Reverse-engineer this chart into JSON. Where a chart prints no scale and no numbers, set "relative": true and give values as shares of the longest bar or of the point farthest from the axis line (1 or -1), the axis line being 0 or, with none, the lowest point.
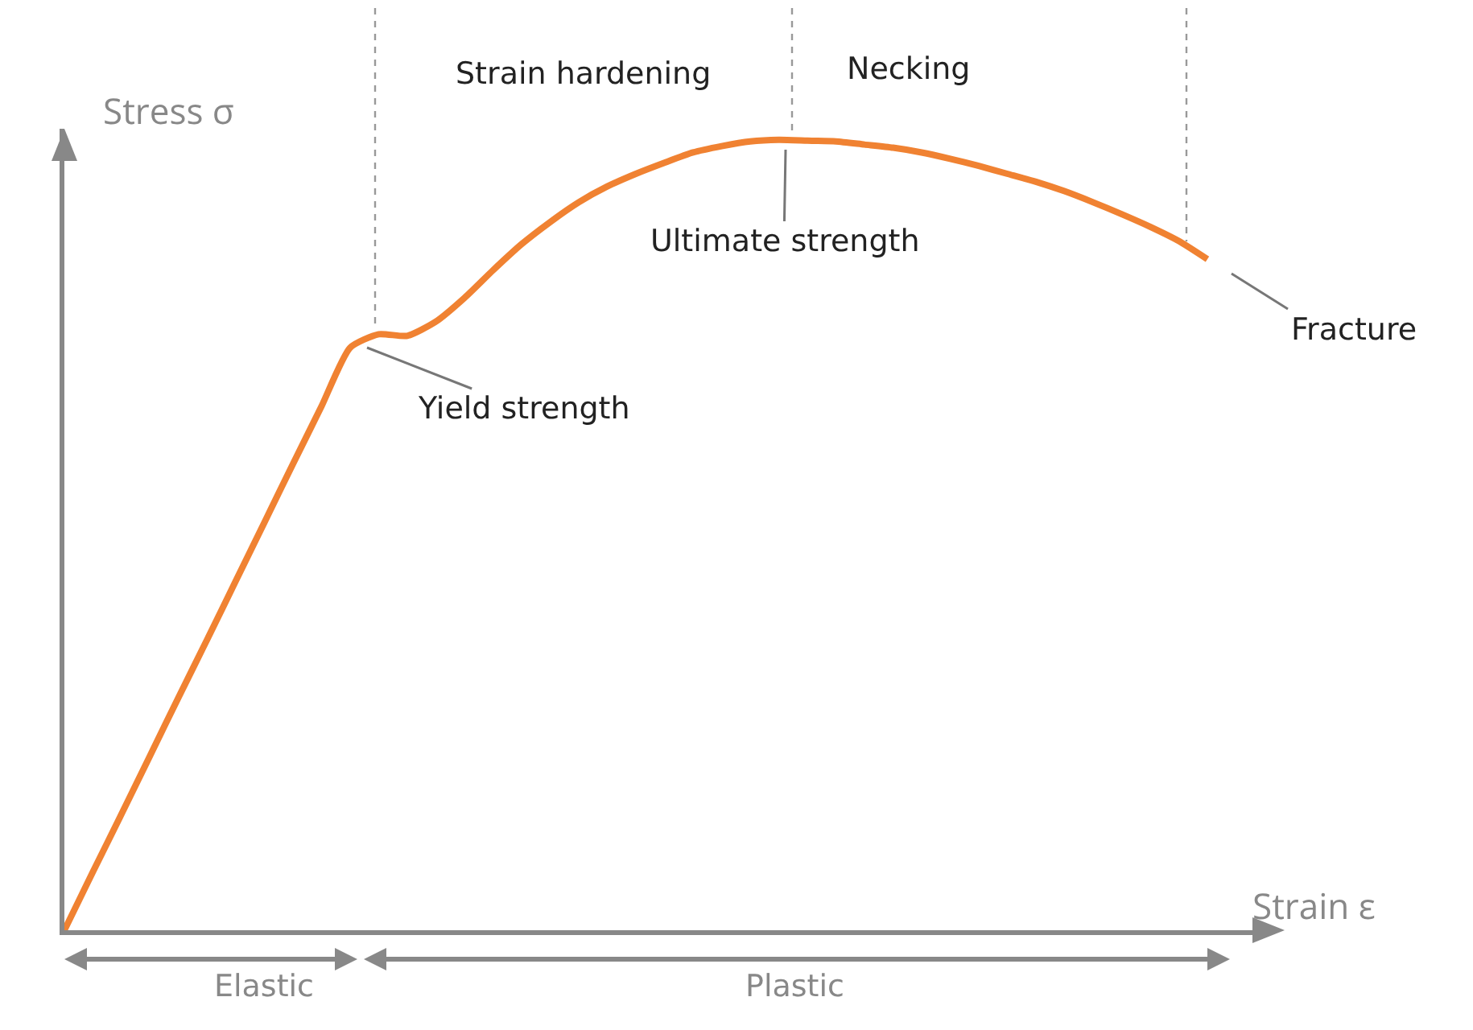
{
  "chart_data": {
    "type": "line",
    "relative": true,
    "xlabel": "Strain ε",
    "ylabel": "Stress σ",
    "categories": [
      null,
      null,
      null,
      null,
      null,
      null,
      null,
      null,
      null,
      null,
      null,
      null,
      null,
      null,
      null,
      null,
      null,
      null,
      null,
      null,
      null,
      null,
      null,
      null,
      null,
      null,
      null,
      null,
      null,
      null,
      null,
      null,
      null,
      null,
      null,
      null,
      null,
      null,
      null,
      null,
      null
    ],
    "series": [
      {
        "color": "#f08232",
        "values": [
          0,
          0.074,
          0.147,
          0.221,
          0.295,
          0.368,
          0.442,
          0.516,
          0.59,
          0.663,
          0.737,
          0.754,
          0.752,
          0.77,
          0.8,
          0.835,
          0.868,
          0.896,
          0.921,
          0.941,
          0.957,
          0.971,
          0.984,
          0.992,
          0.998,
          1,
          0.999,
          0.998,
          0.994,
          0.99,
          0.984,
          0.976,
          0.967,
          0.957,
          0.947,
          0.935,
          0.921,
          0.906,
          0.89,
          0.872,
          0.849
        ]
      }
    ],
    "annotations": [
      "Strain hardening",
      "Necking",
      "Yield strength",
      "Ultimate strength",
      "Fracture",
      "Elastic",
      "Plastic"
    ]
  }
}
